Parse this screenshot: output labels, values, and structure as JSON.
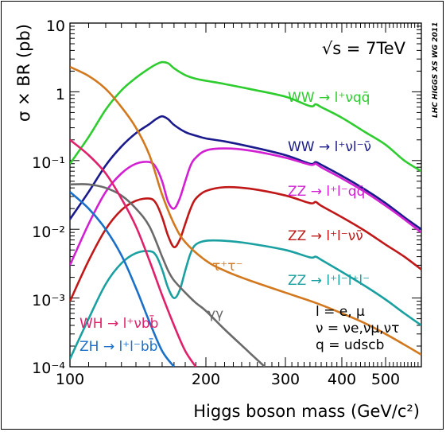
{
  "chart_data": {
    "type": "line",
    "xscale": "log",
    "yscale": "log",
    "xlim": [
      100,
      600
    ],
    "ylim": [
      0.0001,
      10
    ],
    "xlabel": "Higgs boson mass (GeV/c²)",
    "ylabel": "σ × BR (pb)",
    "xticks": [
      "100",
      "200",
      "300",
      "400",
      "500"
    ],
    "yticks": [
      "10⁻⁴",
      "10⁻³",
      "10⁻²",
      "10⁻¹",
      "1",
      "10"
    ],
    "energy_label": "√s = 7TeV",
    "watermark": "LHC HIGGS XS WG 2011",
    "notes": [
      "l = e, μ",
      "ν = νe,νμ,ντ",
      "q = udscb"
    ],
    "grid": false,
    "series": [
      {
        "name": "WW → l⁺νqq̄",
        "color": "#2ecc2e",
        "x": [
          100,
          110,
          120,
          130,
          140,
          150,
          155,
          160,
          165,
          170,
          180,
          190,
          200,
          220,
          250,
          300,
          340,
          350,
          360,
          400,
          450,
          500,
          550,
          600
        ],
        "y": [
          0.09,
          0.22,
          0.55,
          1.05,
          1.6,
          2.2,
          2.5,
          2.7,
          2.6,
          2.2,
          1.75,
          1.55,
          1.45,
          1.3,
          1.1,
          0.85,
          0.62,
          0.66,
          0.6,
          0.42,
          0.26,
          0.17,
          0.1,
          0.07
        ]
      },
      {
        "name": "WW → l⁺νl⁻ν̄",
        "color": "#1a1a8c",
        "x": [
          100,
          110,
          120,
          130,
          140,
          150,
          155,
          160,
          165,
          170,
          180,
          190,
          200,
          220,
          250,
          300,
          340,
          350,
          360,
          400,
          450,
          500,
          550,
          600
        ],
        "y": [
          0.014,
          0.035,
          0.085,
          0.16,
          0.25,
          0.34,
          0.4,
          0.44,
          0.4,
          0.33,
          0.26,
          0.23,
          0.21,
          0.19,
          0.16,
          0.12,
          0.09,
          0.095,
          0.087,
          0.06,
          0.038,
          0.024,
          0.015,
          0.01
        ]
      },
      {
        "name": "ZZ → l⁺l⁻qq̄",
        "color": "#d21fd2",
        "x": [
          100,
          110,
          120,
          130,
          140,
          150,
          155,
          160,
          165,
          170,
          175,
          180,
          185,
          190,
          200,
          220,
          250,
          300,
          340,
          350,
          360,
          400,
          450,
          500,
          550,
          600
        ],
        "y": [
          0.003,
          0.012,
          0.035,
          0.065,
          0.09,
          0.095,
          0.08,
          0.05,
          0.025,
          0.02,
          0.028,
          0.05,
          0.085,
          0.11,
          0.14,
          0.15,
          0.14,
          0.11,
          0.087,
          0.09,
          0.08,
          0.055,
          0.035,
          0.022,
          0.014,
          0.009
        ]
      },
      {
        "name": "ZZ → l⁺l⁻νν̄",
        "color": "#c01818",
        "x": [
          100,
          110,
          120,
          130,
          140,
          150,
          155,
          160,
          165,
          170,
          175,
          180,
          185,
          190,
          200,
          220,
          250,
          300,
          340,
          350,
          360,
          400,
          450,
          500,
          550,
          600
        ],
        "y": [
          0.0009,
          0.0035,
          0.01,
          0.019,
          0.026,
          0.028,
          0.024,
          0.015,
          0.008,
          0.0055,
          0.007,
          0.012,
          0.02,
          0.028,
          0.036,
          0.041,
          0.039,
          0.031,
          0.024,
          0.025,
          0.022,
          0.015,
          0.0095,
          0.006,
          0.004,
          0.0026
        ]
      },
      {
        "name": "ZZ → l⁺l⁻l⁺l⁻",
        "color": "#1aa0a0",
        "x": [
          100,
          110,
          120,
          130,
          140,
          150,
          155,
          160,
          165,
          170,
          175,
          180,
          185,
          190,
          200,
          220,
          250,
          300,
          340,
          350,
          360,
          400,
          450,
          500,
          550,
          600
        ],
        "y": [
          0.00013,
          0.0005,
          0.0016,
          0.0032,
          0.0045,
          0.0048,
          0.0042,
          0.0026,
          0.0014,
          0.001,
          0.0013,
          0.0025,
          0.0045,
          0.006,
          0.0068,
          0.0068,
          0.0062,
          0.005,
          0.0039,
          0.004,
          0.0036,
          0.0024,
          0.0015,
          0.00095,
          0.0006,
          0.0004
        ]
      },
      {
        "name": "τ⁺τ⁻",
        "color": "#d2781e",
        "x": [
          100,
          110,
          120,
          130,
          140,
          150,
          160,
          170,
          180,
          200,
          220,
          250,
          300,
          350,
          400,
          450,
          500,
          550,
          600
        ],
        "y": [
          2.3,
          1.7,
          1.1,
          0.6,
          0.3,
          0.12,
          0.032,
          0.012,
          0.0065,
          0.0035,
          0.0025,
          0.0018,
          0.0012,
          0.00085,
          0.0006,
          0.00043,
          0.0003,
          0.00021,
          0.00015
        ]
      },
      {
        "name": "γγ",
        "color": "#6a6a6a",
        "x": [
          100,
          110,
          120,
          130,
          140,
          150,
          160,
          165,
          170,
          180,
          190,
          200,
          220,
          250,
          270
        ],
        "y": [
          0.045,
          0.045,
          0.04,
          0.031,
          0.02,
          0.011,
          0.004,
          0.0025,
          0.0018,
          0.0012,
          0.00085,
          0.00065,
          0.00035,
          0.00016,
          0.0001
        ]
      },
      {
        "name": "WH → l⁺νbb̄",
        "color": "#e0206a",
        "x": [
          100,
          110,
          120,
          130,
          140,
          150,
          160,
          170,
          180,
          190
        ],
        "y": [
          0.2,
          0.12,
          0.065,
          0.028,
          0.011,
          0.0035,
          0.0011,
          0.0004,
          0.00017,
          0.0001
        ]
      },
      {
        "name": "ZH → l⁺l⁻bb̄",
        "color": "#1a6fc8",
        "x": [
          100,
          110,
          120,
          130,
          140,
          150,
          160,
          170
        ],
        "y": [
          0.035,
          0.02,
          0.01,
          0.0042,
          0.0014,
          0.00045,
          0.00017,
          0.0001
        ]
      }
    ]
  },
  "labels": {
    "ww_qq": "WW → l⁺νqq̄",
    "ww_lnln": "WW → l⁺νl⁻ν̄",
    "zz_qq": "ZZ → l⁺l⁻qq̄",
    "zz_nn": "ZZ → l⁺l⁻νν̄",
    "zz_4l": "ZZ → l⁺l⁻l⁺l⁻",
    "tautau": "τ⁺τ⁻",
    "gammagamma": "γγ",
    "wh": "WH → l⁺νbb̄",
    "zh": "ZH → l⁺l⁻bb̄"
  }
}
